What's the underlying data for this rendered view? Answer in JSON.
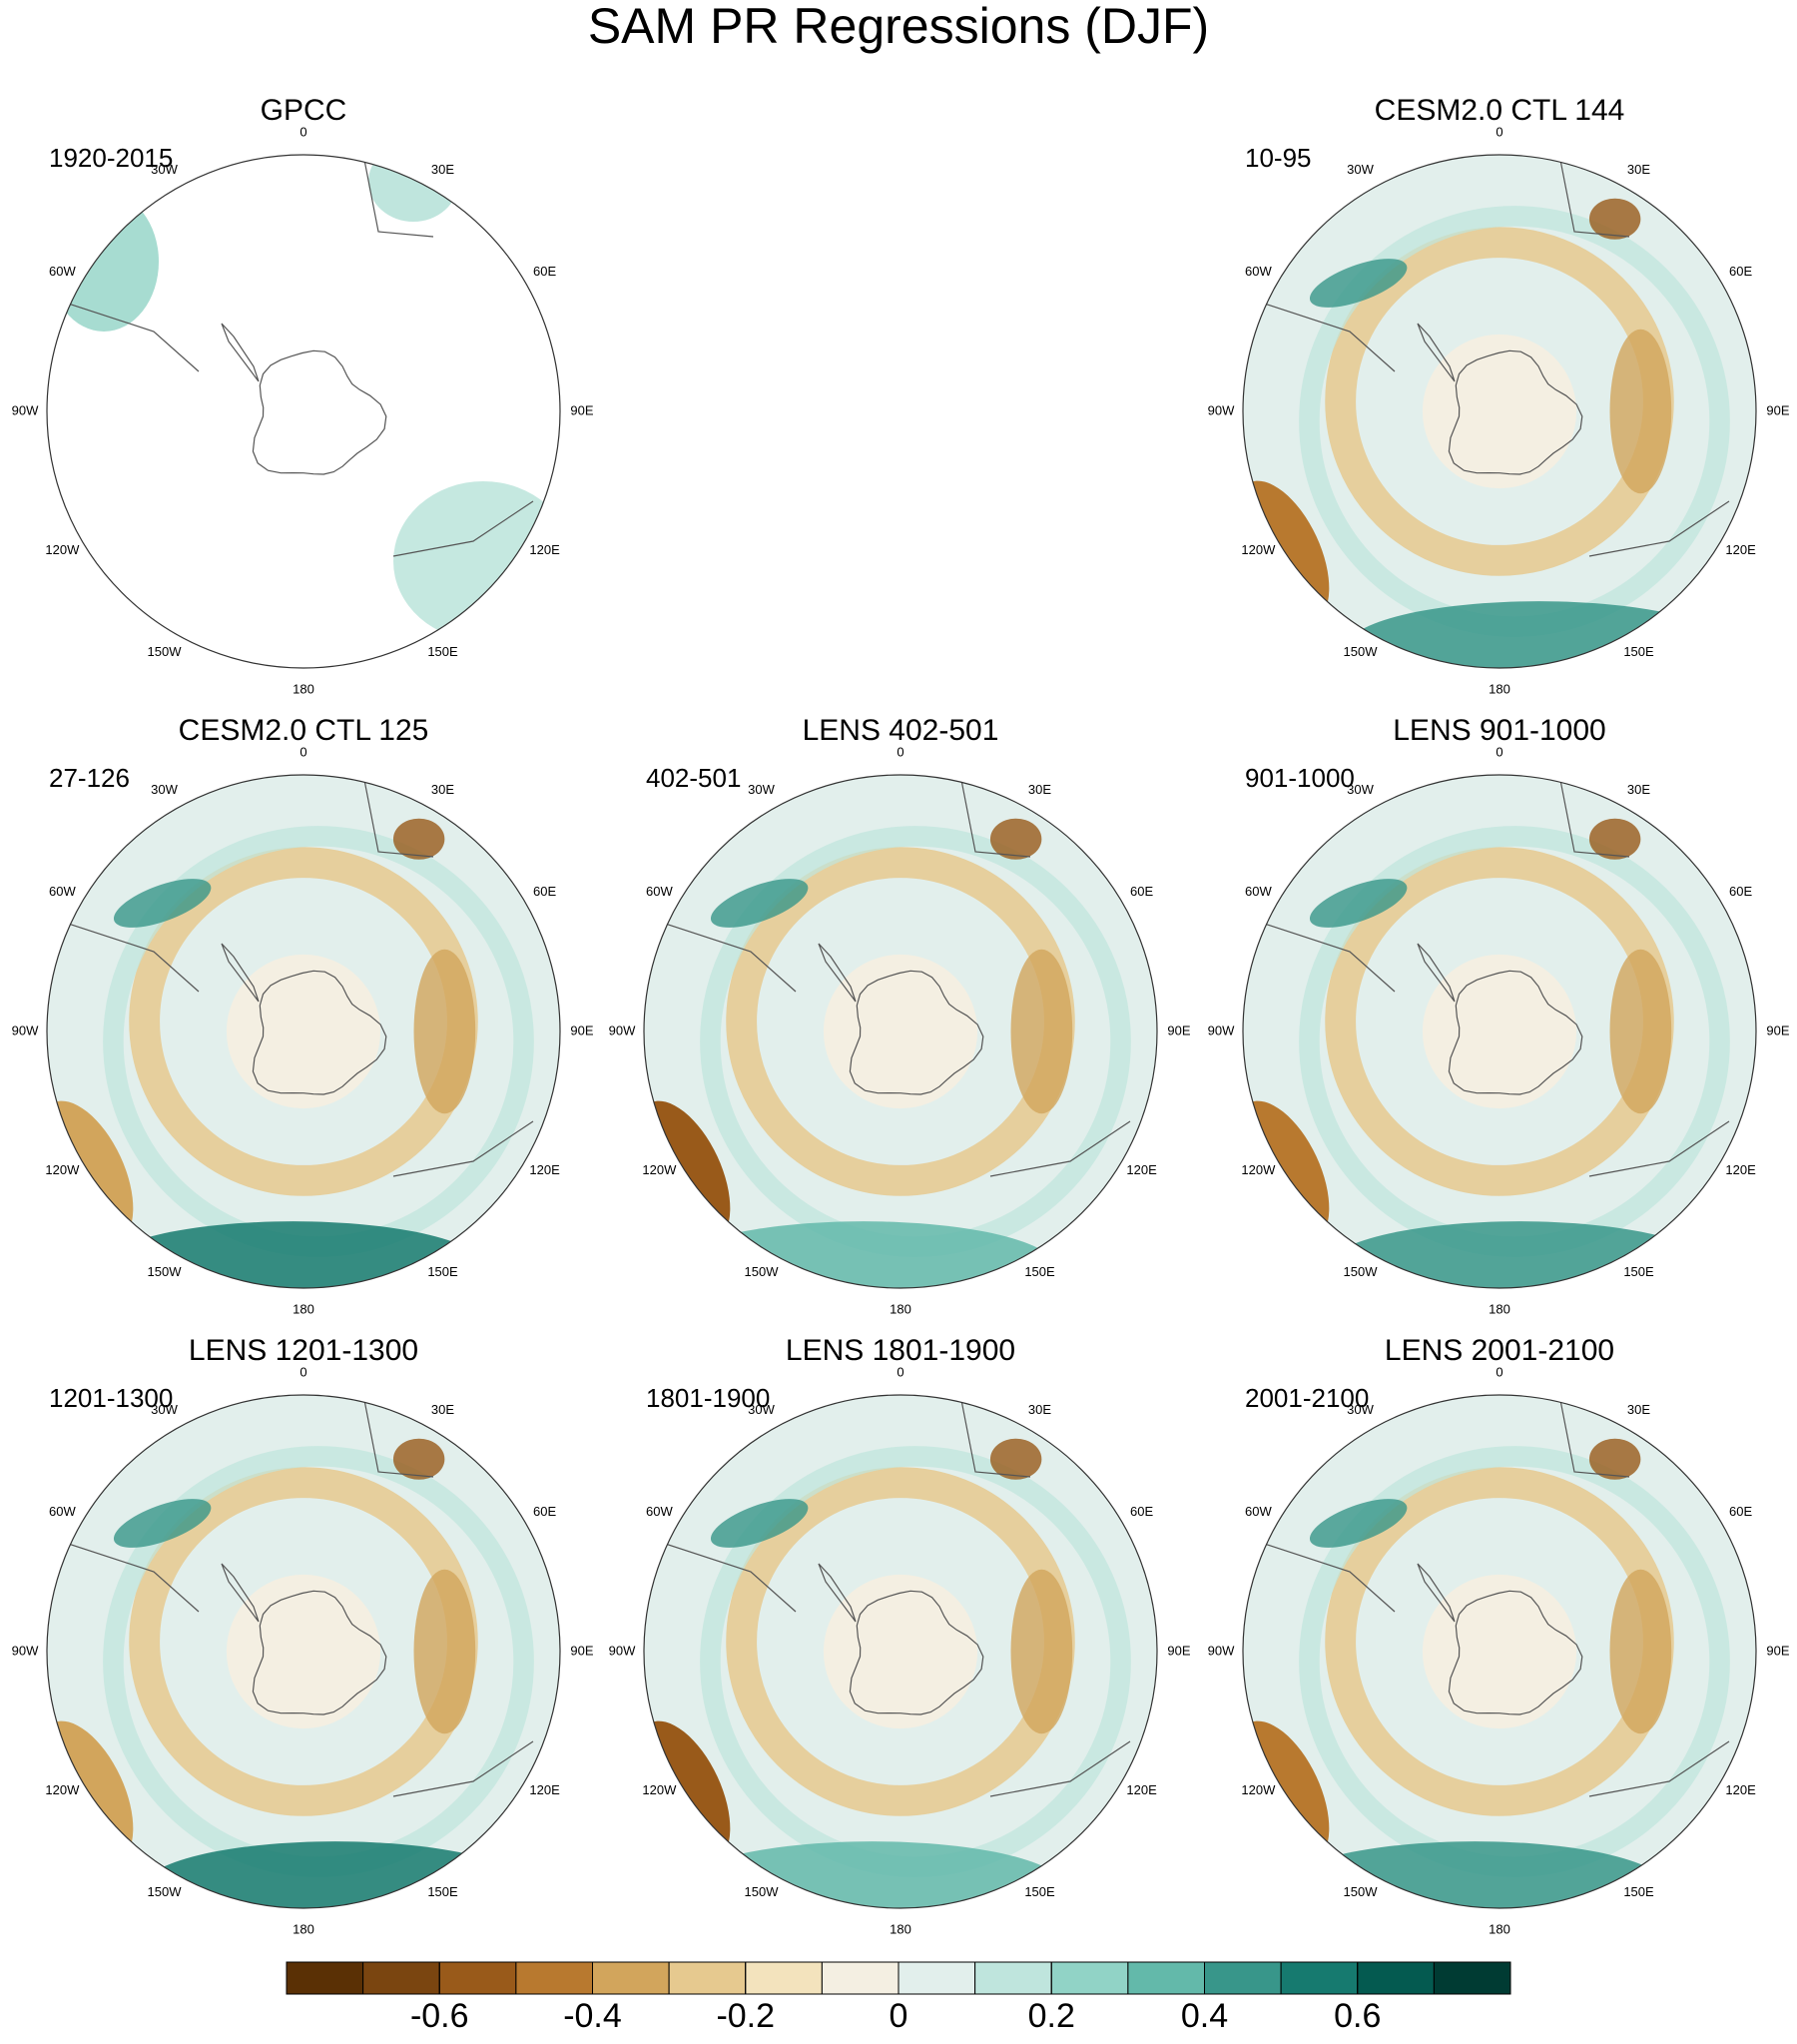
{
  "title": "SAM PR Regressions (DJF)",
  "panels": [
    {
      "title": "GPCC",
      "period": "1920-2015"
    },
    {
      "title": "CESM2.0 CTL 144",
      "period": "10-95"
    },
    {
      "title": "CESM2.0 CTL 125",
      "period": "27-126"
    },
    {
      "title": "LENS 402-501",
      "period": "402-501"
    },
    {
      "title": "LENS 901-1000",
      "period": "901-1000"
    },
    {
      "title": "LENS 1201-1300",
      "period": "1201-1300"
    },
    {
      "title": "LENS 1801-1900",
      "period": "1801-1900"
    },
    {
      "title": "LENS 2001-2100",
      "period": "2001-2100"
    }
  ],
  "lon_labels": [
    "0",
    "30E",
    "60E",
    "90E",
    "120E",
    "150E",
    "180",
    "150W",
    "120W",
    "90W",
    "60W",
    "30W"
  ],
  "colorbar": {
    "lim": [
      -0.8,
      0.8
    ],
    "ticks": [
      -0.6,
      -0.4,
      -0.2,
      0,
      0.2,
      0.4,
      0.6
    ],
    "colors": [
      "#5a3005",
      "#7a4510",
      "#995a1a",
      "#b8792f",
      "#d2a55c",
      "#e6c98f",
      "#f3e3bd",
      "#f4efe2",
      "#e2efec",
      "#bfe5dd",
      "#91d3c6",
      "#63b9aa",
      "#38968a",
      "#167a6f",
      "#045a50",
      "#003b33"
    ]
  }
}
